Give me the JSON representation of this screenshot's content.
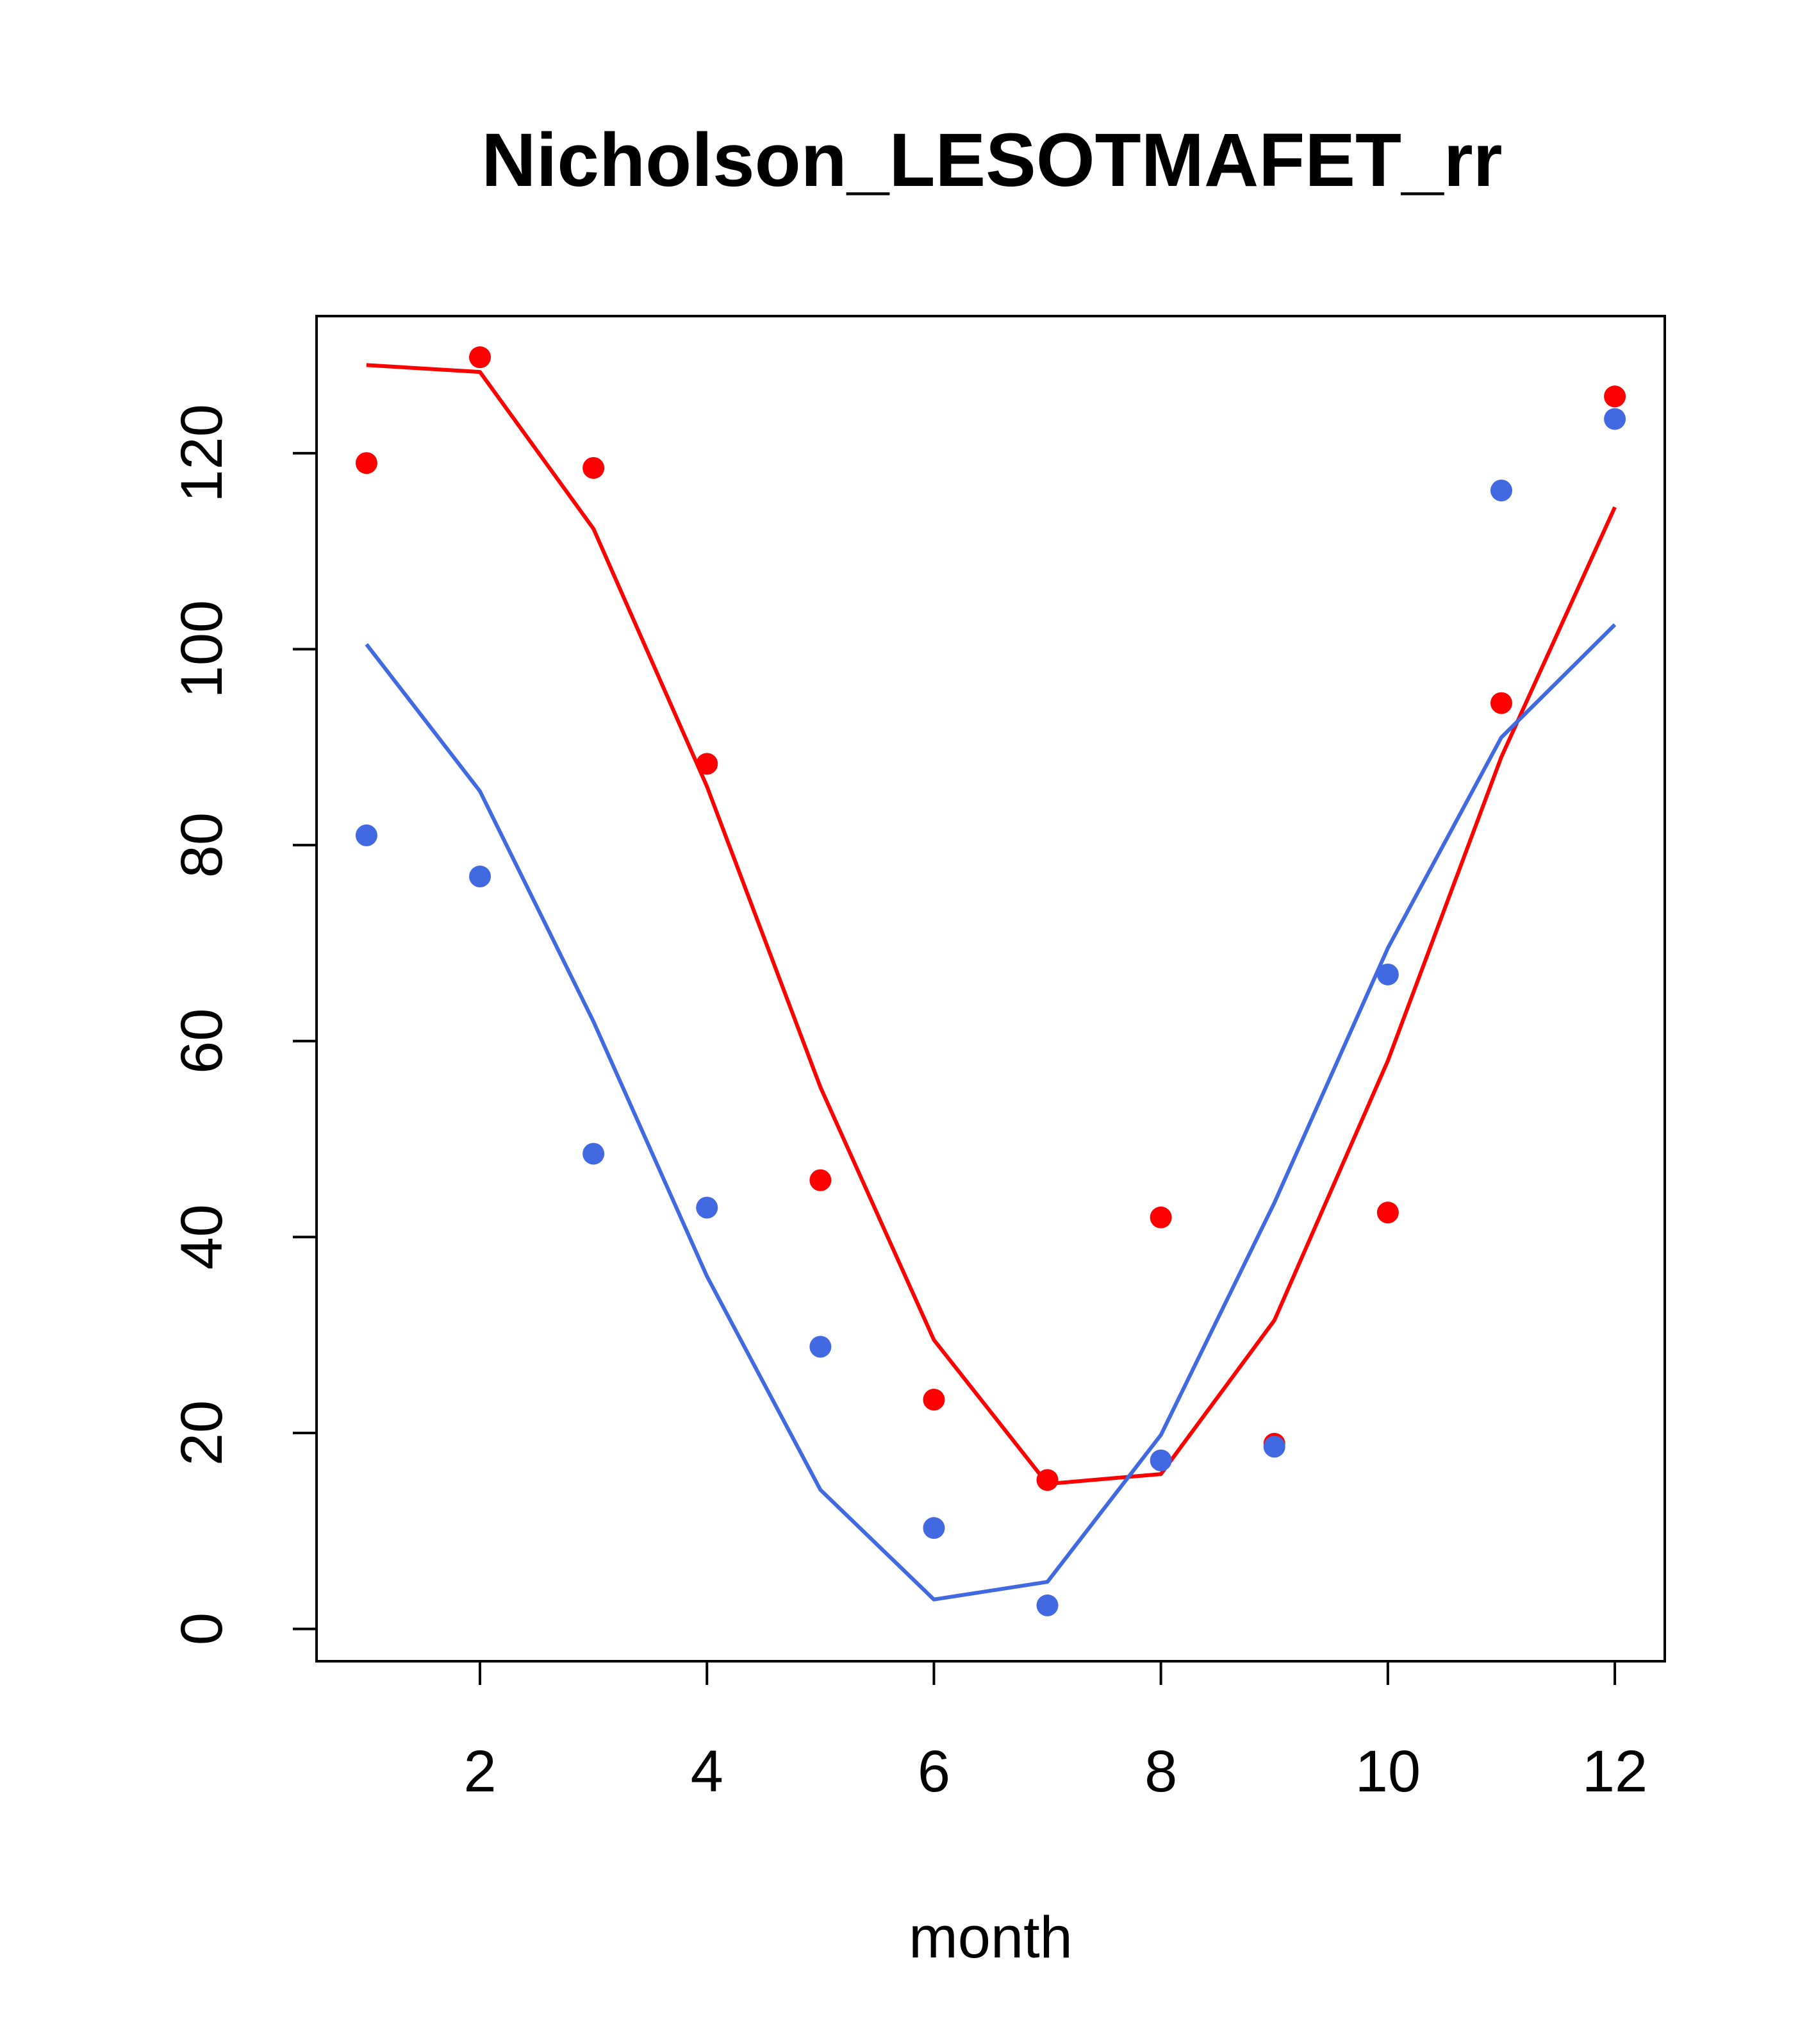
{
  "chart_data": {
    "type": "line",
    "title": "Nicholson_LESOTMAFET_rr",
    "xlabel": "month",
    "ylabel": "",
    "xlim": [
      0.56,
      12.44
    ],
    "ylim": [
      -3.3,
      134.0
    ],
    "x_ticks": [
      2,
      4,
      6,
      8,
      10,
      12
    ],
    "y_ticks": [
      0,
      20,
      40,
      60,
      80,
      100,
      120
    ],
    "grid": false,
    "legend": "none",
    "x": [
      1,
      2,
      3,
      4,
      5,
      6,
      7,
      8,
      9,
      10,
      11,
      12
    ],
    "series": [
      {
        "color": "#ff0000",
        "line": [
          129.0,
          128.3,
          112.3,
          86.0,
          55.3,
          29.5,
          14.8,
          15.8,
          31.5,
          58.0,
          89.0,
          114.5
        ],
        "points": [
          119.0,
          129.8,
          118.5,
          88.3,
          45.8,
          23.4,
          15.2,
          42.0,
          18.9,
          42.5,
          94.5,
          125.8
        ]
      },
      {
        "color": "#4169e1",
        "line": [
          100.5,
          85.5,
          62.0,
          36.0,
          14.2,
          3.0,
          4.8,
          19.8,
          43.5,
          69.5,
          91.0,
          102.5
        ],
        "points": [
          81.0,
          76.8,
          48.5,
          43.0,
          28.8,
          10.3,
          2.4,
          17.2,
          18.6,
          66.8,
          116.2,
          123.5
        ]
      }
    ]
  }
}
